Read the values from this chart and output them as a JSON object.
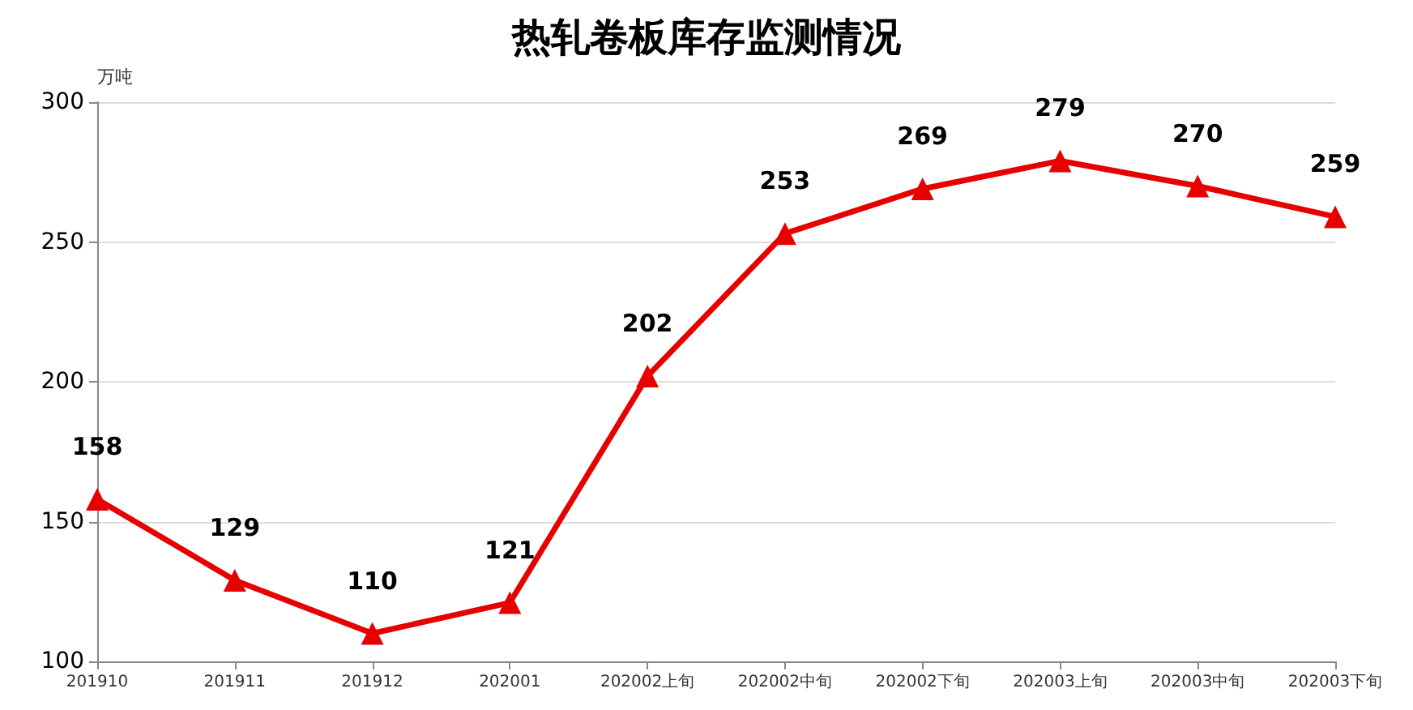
{
  "chart_data": {
    "type": "line",
    "title": "热轧卷板库存监测情况",
    "ylabel": "万吨",
    "categories": [
      "201910",
      "201911",
      "201912",
      "202001",
      "202002上旬",
      "202002中旬",
      "202002下旬",
      "202003上旬",
      "202003中旬",
      "202003下旬"
    ],
    "series": [
      {
        "color": "#e60000",
        "values": [
          158,
          129,
          110,
          121,
          202,
          253,
          269,
          279,
          270,
          259
        ]
      }
    ],
    "ylim": [
      100,
      300
    ],
    "yticks": [
      100,
      150,
      200,
      250,
      300
    ],
    "grid": "y",
    "marker": "triangle",
    "line_style": "solid",
    "data_labels": true
  }
}
